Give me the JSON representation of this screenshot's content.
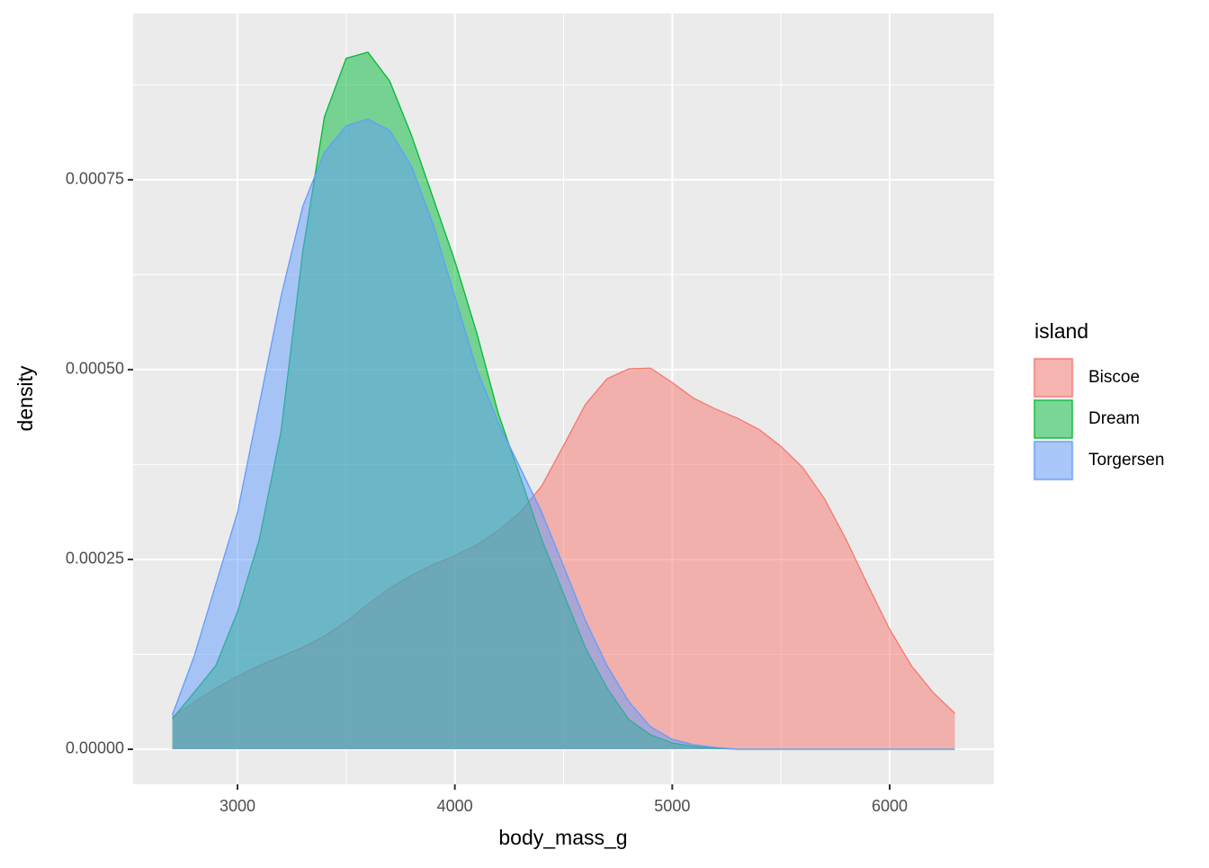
{
  "chart_data": {
    "type": "density",
    "x_label": "body_mass_g",
    "y_label": "density",
    "legend_title": "island",
    "legend_position": "right",
    "grid": true,
    "xlim": [
      2520,
      6480
    ],
    "ylim": [
      -4.62e-05,
      0.000969
    ],
    "xticks": [
      3000,
      4000,
      5000,
      6000
    ],
    "xminorticks": [
      3500,
      4500,
      5500
    ],
    "yticks": [
      {
        "value": 0,
        "label": "0.00000"
      },
      0.00025,
      {
        "value": 0.0005,
        "label": "0.00050"
      },
      0.00075
    ],
    "yminorticks": [
      0.000125,
      0.000375,
      0.000625,
      0.000875
    ],
    "fill_opacity": 0.5,
    "x": [
      2700,
      2800,
      2900,
      3000,
      3100,
      3200,
      3300,
      3400,
      3500,
      3600,
      3700,
      3800,
      3900,
      4000,
      4100,
      4200,
      4300,
      4400,
      4500,
      4600,
      4700,
      4800,
      4900,
      5000,
      5100,
      5200,
      5300,
      5400,
      5500,
      5600,
      5700,
      5800,
      5900,
      6000,
      6100,
      6200,
      6300
    ],
    "series": [
      {
        "name": "Biscoe",
        "color": "#F8766D",
        "values": [
          4.27e-05,
          6.2e-05,
          8e-05,
          9.6e-05,
          0.00011,
          0.000122,
          0.000134,
          0.000149,
          0.000168,
          0.000191,
          0.000212,
          0.000229,
          0.000243,
          0.000255,
          0.000269,
          0.000288,
          0.000312,
          0.000347,
          0.0004,
          0.000454,
          0.000488,
          0.000501,
          0.000502,
          0.000483,
          0.000462,
          0.000448,
          0.000436,
          0.000421,
          0.000399,
          0.000371,
          0.00033,
          0.000276,
          0.000216,
          0.000158,
          0.00011,
          7.47e-05,
          4.74e-05
        ]
      },
      {
        "name": "Dream",
        "color": "#00BA38",
        "values": [
          4e-05,
          7.47e-05,
          0.00011,
          0.000181,
          0.000276,
          0.000418,
          0.000655,
          0.000833,
          0.00091,
          0.000918,
          0.00088,
          0.000809,
          0.000726,
          0.000643,
          0.000549,
          0.000442,
          0.000359,
          0.000276,
          0.000205,
          0.000134,
          8.06e-05,
          3.91e-05,
          1.9e-05,
          8.3e-06,
          3.6e-06,
          1.2e-06,
          0,
          0,
          0,
          0,
          0,
          0,
          0,
          0,
          0,
          0,
          0
        ]
      },
      {
        "name": "Torgersen",
        "color": "#619CFF",
        "values": [
          4.5e-05,
          0.000122,
          0.000217,
          0.000312,
          0.000454,
          0.000596,
          0.000715,
          0.000786,
          0.000821,
          0.00083,
          0.000815,
          0.000768,
          0.000691,
          0.000596,
          0.000501,
          0.00043,
          0.000371,
          0.000312,
          0.000241,
          0.00017,
          0.00011,
          6.28e-05,
          2.96e-05,
          1.3e-05,
          5.9e-06,
          2.4e-06,
          0,
          0,
          0,
          0,
          0,
          0,
          0,
          0,
          0,
          0,
          0
        ]
      }
    ]
  }
}
